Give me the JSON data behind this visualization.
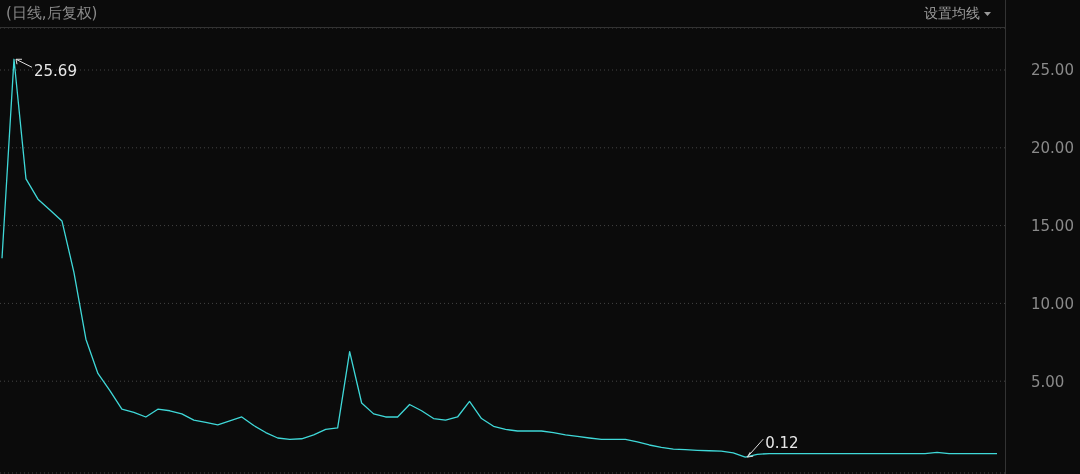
{
  "chart_data": {
    "type": "line",
    "title": "(日线,后复权)",
    "annotations": [
      "设置均线",
      "25.69",
      "0.12"
    ],
    "categories": [
      null,
      null,
      null,
      null,
      null,
      null,
      null,
      null,
      null,
      null,
      null,
      null,
      null,
      null,
      null,
      null,
      null,
      null,
      null,
      null,
      null,
      null,
      null,
      null,
      null,
      null,
      null,
      null,
      null,
      null,
      null,
      null,
      null,
      null,
      null,
      null,
      null,
      null,
      null,
      null,
      null,
      null,
      null,
      null,
      null,
      null,
      null,
      null,
      null,
      null,
      null,
      null,
      null,
      null,
      null,
      null,
      null,
      null,
      null,
      null,
      null,
      null,
      null,
      null,
      null,
      null,
      null,
      null,
      null,
      null,
      null,
      null,
      null,
      null,
      null,
      null,
      null,
      null,
      null,
      null,
      null,
      null,
      null,
      null
    ],
    "series": [
      {
        "color": "#3fd8d8",
        "values": [
          12.9,
          25.69,
          18.0,
          16.7,
          16.0,
          15.3,
          12.0,
          7.7,
          5.5,
          4.4,
          3.2,
          3.0,
          2.7,
          3.2,
          3.1,
          2.9,
          2.5,
          2.35,
          2.2,
          2.45,
          2.7,
          2.15,
          1.7,
          1.35,
          1.26,
          1.3,
          1.55,
          1.9,
          2.0,
          6.9,
          3.6,
          2.9,
          2.7,
          2.7,
          3.5,
          3.1,
          2.6,
          2.5,
          2.7,
          3.7,
          2.6,
          2.1,
          1.9,
          1.8,
          1.8,
          1.8,
          1.7,
          1.55,
          1.45,
          1.35,
          1.26,
          1.26,
          1.26,
          1.1,
          0.9,
          0.75,
          0.63,
          0.6,
          0.56,
          0.53,
          0.5,
          0.4,
          0.12,
          0.3,
          0.35,
          0.35,
          0.35,
          0.35,
          0.35,
          0.35,
          0.35,
          0.35,
          0.35,
          0.35,
          0.35,
          0.35,
          0.35,
          0.35,
          0.42,
          0.35,
          0.35,
          0.35,
          0.35,
          0.35
        ]
      }
    ],
    "ylim": [
      -0.9,
      27.7
    ],
    "yticks": [
      {
        "value": 5,
        "label": "5.00"
      },
      {
        "value": 10,
        "label": "10.00"
      },
      {
        "value": 15,
        "label": "15.00"
      },
      {
        "value": 20,
        "label": "20.00"
      },
      {
        "value": 25,
        "label": "25.00"
      }
    ],
    "grid": "y",
    "tick_labels": "y",
    "marker": "none",
    "line_style": "solid"
  }
}
